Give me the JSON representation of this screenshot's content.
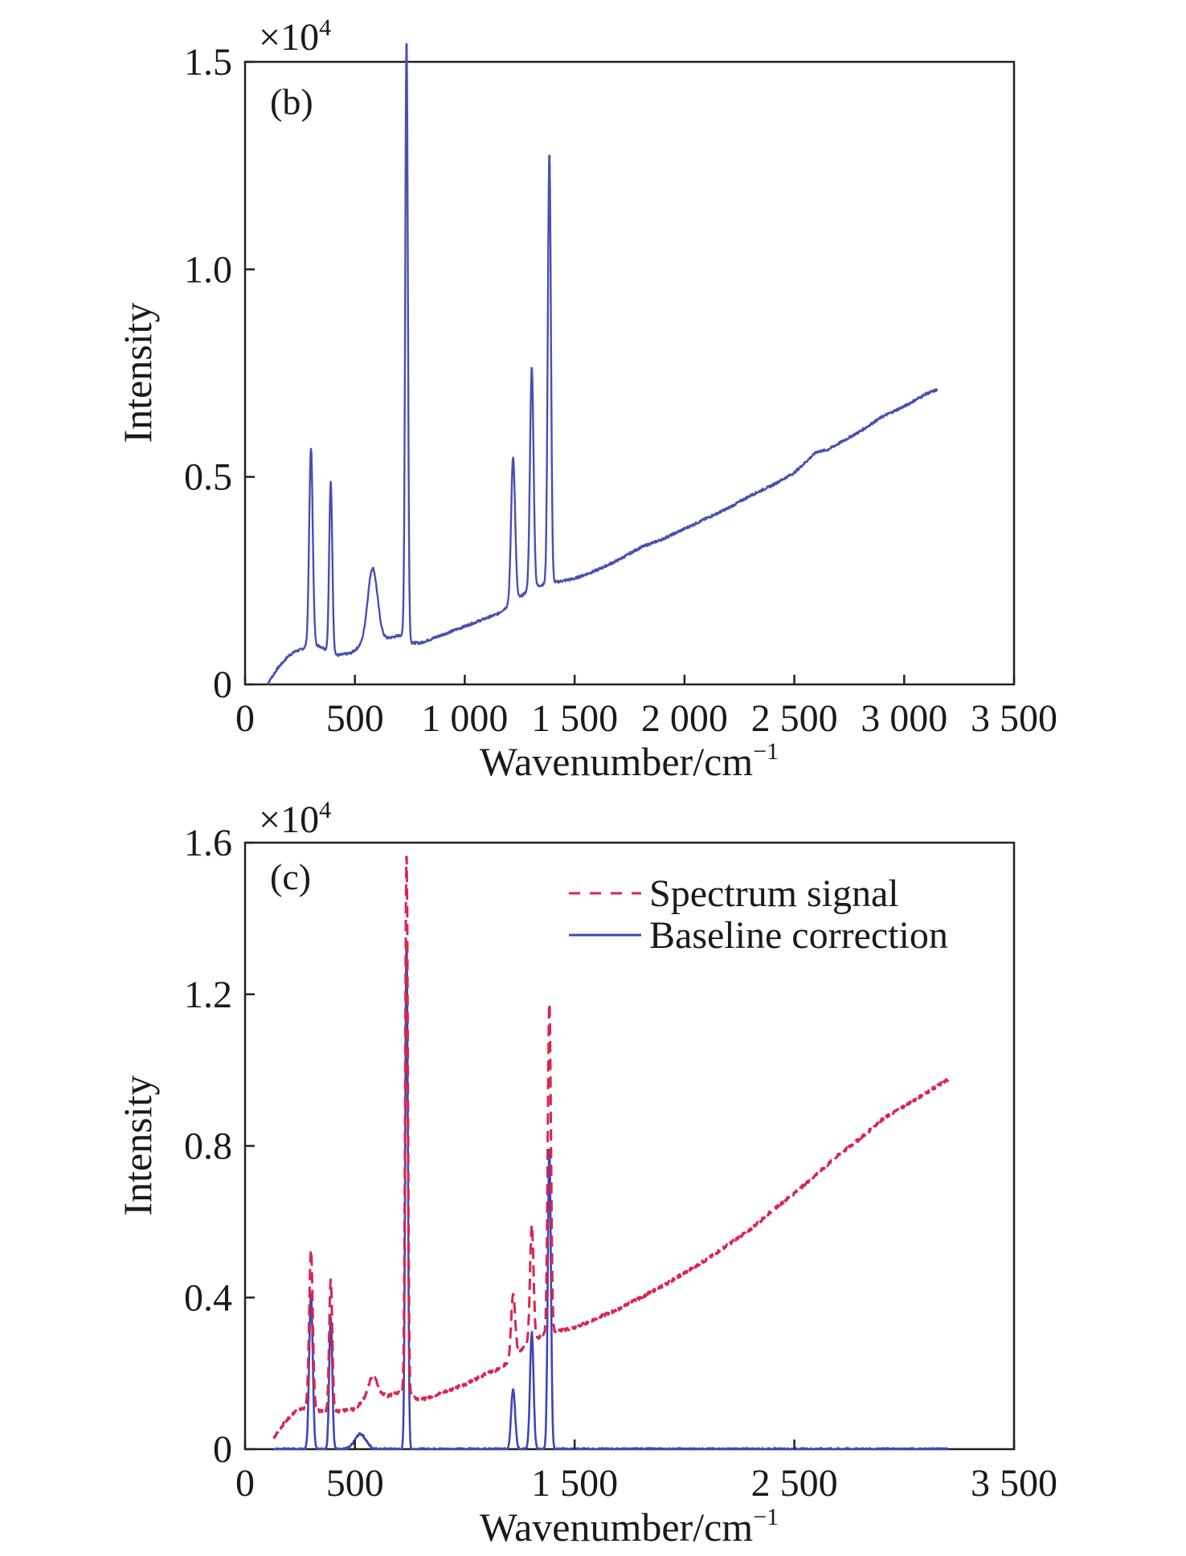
{
  "colors": {
    "signal_line": "#4a4fb0",
    "spectrum_dashed": "#d8264f",
    "baseline_solid": "#3f46b5",
    "axis": "#222222"
  },
  "chart_data": [
    {
      "type": "line",
      "panel_label": "(b)",
      "xlabel": "Wavenumber/cm",
      "xlabel_sup": "−1",
      "ylabel": "Intensity",
      "multiplier": "×10",
      "multiplier_sup": "4",
      "xlim": [
        0,
        3500
      ],
      "ylim": [
        0,
        1.5
      ],
      "xticks": [
        0,
        500,
        1000,
        1500,
        2000,
        2500,
        3000,
        3500
      ],
      "xtick_labels": [
        "0",
        "500",
        "1 000",
        "1 500",
        "2 000",
        "2 500",
        "3 000",
        "3 500"
      ],
      "yticks": [
        0,
        0.5,
        1.0,
        1.5
      ],
      "ytick_labels": [
        "0",
        "0.5",
        "1.0",
        "1.5"
      ],
      "baseline": [
        [
          100,
          0.0
        ],
        [
          150,
          0.04
        ],
        [
          200,
          0.07
        ],
        [
          230,
          0.08
        ],
        [
          260,
          0.085
        ],
        [
          300,
          0.1
        ],
        [
          350,
          0.09
        ],
        [
          380,
          0.08
        ],
        [
          420,
          0.07
        ],
        [
          480,
          0.075
        ],
        [
          520,
          0.09
        ],
        [
          560,
          0.1
        ],
        [
          600,
          0.11
        ],
        [
          640,
          0.11
        ],
        [
          680,
          0.115
        ],
        [
          720,
          0.12
        ],
        [
          760,
          0.1
        ],
        [
          800,
          0.1
        ],
        [
          900,
          0.12
        ],
        [
          1000,
          0.14
        ],
        [
          1100,
          0.16
        ],
        [
          1150,
          0.17
        ],
        [
          1200,
          0.19
        ],
        [
          1250,
          0.21
        ],
        [
          1300,
          0.23
        ],
        [
          1350,
          0.24
        ],
        [
          1400,
          0.245
        ],
        [
          1450,
          0.25
        ],
        [
          1500,
          0.255
        ],
        [
          1600,
          0.275
        ],
        [
          1700,
          0.3
        ],
        [
          1800,
          0.33
        ],
        [
          1900,
          0.35
        ],
        [
          2000,
          0.375
        ],
        [
          2100,
          0.4
        ],
        [
          2200,
          0.425
        ],
        [
          2300,
          0.455
        ],
        [
          2400,
          0.48
        ],
        [
          2500,
          0.51
        ],
        [
          2550,
          0.535
        ],
        [
          2600,
          0.56
        ],
        [
          2650,
          0.565
        ],
        [
          2700,
          0.58
        ],
        [
          2800,
          0.61
        ],
        [
          2900,
          0.645
        ],
        [
          3000,
          0.67
        ],
        [
          3050,
          0.685
        ],
        [
          3100,
          0.7
        ],
        [
          3150,
          0.71
        ]
      ],
      "peaks": [
        {
          "center": 300,
          "height": 0.47,
          "width": 8
        },
        {
          "center": 390,
          "height": 0.41,
          "width": 7
        },
        {
          "center": 580,
          "height": 0.175,
          "width": 22
        },
        {
          "center": 735,
          "height": 1.45,
          "width": 6
        },
        {
          "center": 1220,
          "height": 0.35,
          "width": 9
        },
        {
          "center": 1305,
          "height": 0.535,
          "width": 8
        },
        {
          "center": 1385,
          "height": 1.04,
          "width": 7
        }
      ]
    },
    {
      "type": "line",
      "panel_label": "(c)",
      "xlabel": "Wavenumber/cm",
      "xlabel_sup": "−1",
      "ylabel": "Intensity",
      "multiplier": "×10",
      "multiplier_sup": "4",
      "xlim": [
        0,
        3500
      ],
      "ylim": [
        0,
        1.6
      ],
      "xticks": [
        0,
        500,
        1500,
        2500,
        3500
      ],
      "xtick_labels": [
        "0",
        "500",
        "1 500",
        "2 500",
        "3 500"
      ],
      "yticks": [
        0,
        0.4,
        0.8,
        1.2,
        1.6
      ],
      "ytick_labels": [
        "0",
        "0.4",
        "0.8",
        "1.2",
        "1.6"
      ],
      "legend": {
        "placement": "top-right",
        "entries": [
          {
            "label": "Spectrum signal",
            "style": "dashed"
          },
          {
            "label": "Baseline correction",
            "style": "solid"
          }
        ]
      },
      "series": [
        {
          "name": "Spectrum signal",
          "style": "dashed",
          "baseline": [
            [
              130,
              0.03
            ],
            [
              180,
              0.07
            ],
            [
              230,
              0.1
            ],
            [
              280,
              0.11
            ],
            [
              350,
              0.1
            ],
            [
              420,
              0.1
            ],
            [
              500,
              0.105
            ],
            [
              540,
              0.13
            ],
            [
              600,
              0.15
            ],
            [
              650,
              0.14
            ],
            [
              700,
              0.15
            ],
            [
              760,
              0.14
            ],
            [
              800,
              0.13
            ],
            [
              900,
              0.15
            ],
            [
              1000,
              0.17
            ],
            [
              1100,
              0.2
            ],
            [
              1150,
              0.21
            ],
            [
              1200,
              0.23
            ],
            [
              1250,
              0.26
            ],
            [
              1300,
              0.28
            ],
            [
              1350,
              0.3
            ],
            [
              1400,
              0.31
            ],
            [
              1450,
              0.315
            ],
            [
              1500,
              0.32
            ],
            [
              1600,
              0.345
            ],
            [
              1700,
              0.37
            ],
            [
              1800,
              0.4
            ],
            [
              1900,
              0.43
            ],
            [
              2000,
              0.465
            ],
            [
              2100,
              0.5
            ],
            [
              2200,
              0.54
            ],
            [
              2300,
              0.58
            ],
            [
              2400,
              0.63
            ],
            [
              2500,
              0.675
            ],
            [
              2600,
              0.725
            ],
            [
              2700,
              0.775
            ],
            [
              2800,
              0.82
            ],
            [
              2900,
              0.87
            ],
            [
              3000,
              0.905
            ],
            [
              3100,
              0.94
            ],
            [
              3200,
              0.975
            ]
          ],
          "peaks": [
            {
              "center": 300,
              "height": 0.42,
              "width": 8
            },
            {
              "center": 390,
              "height": 0.35,
              "width": 7
            },
            {
              "center": 580,
              "height": 0.05,
              "width": 18
            },
            {
              "center": 735,
              "height": 1.44,
              "width": 6
            },
            {
              "center": 1220,
              "height": 0.17,
              "width": 9
            },
            {
              "center": 1305,
              "height": 0.31,
              "width": 8
            },
            {
              "center": 1385,
              "height": 0.88,
              "width": 7
            }
          ]
        },
        {
          "name": "Baseline correction",
          "style": "solid",
          "baseline": [
            [
              130,
              0.0
            ],
            [
              3200,
              0.0
            ]
          ],
          "peaks": [
            {
              "center": 300,
              "height": 0.41,
              "width": 8
            },
            {
              "center": 390,
              "height": 0.35,
              "width": 7
            },
            {
              "center": 525,
              "height": 0.04,
              "width": 25
            },
            {
              "center": 735,
              "height": 1.36,
              "width": 6
            },
            {
              "center": 1220,
              "height": 0.16,
              "width": 9
            },
            {
              "center": 1305,
              "height": 0.31,
              "width": 8
            },
            {
              "center": 1385,
              "height": 0.8,
              "width": 7
            }
          ]
        }
      ]
    }
  ]
}
